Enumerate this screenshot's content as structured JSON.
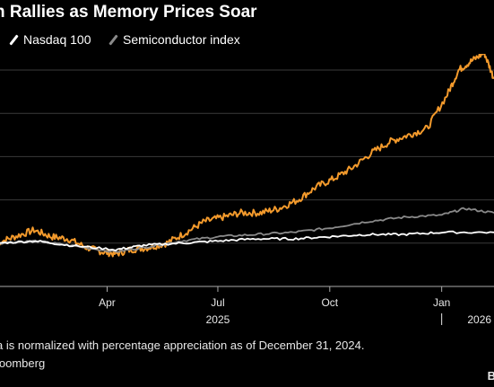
{
  "header": {
    "title": "n Rallies as Memory Prices Soar"
  },
  "legend": [
    {
      "label": "Nasdaq 100",
      "color": "#ffffff"
    },
    {
      "label": "Semiconductor index",
      "color": "#8a8a8a"
    }
  ],
  "chart_data": {
    "type": "line",
    "x_range": [
      "2024-12-31",
      "2026-02-13"
    ],
    "y_range": [
      -20,
      80
    ],
    "grid": true,
    "series": [
      {
        "name": "",
        "color": "#f39a2c",
        "points": [
          [
            "2024-12-31",
            0
          ],
          [
            "2025-01-15",
            3
          ],
          [
            "2025-01-31",
            6
          ],
          [
            "2025-02-14",
            3
          ],
          [
            "2025-02-28",
            2
          ],
          [
            "2025-03-15",
            -2
          ],
          [
            "2025-03-28",
            -4
          ],
          [
            "2025-04-08",
            -5
          ],
          [
            "2025-04-20",
            -3
          ],
          [
            "2025-05-05",
            -2
          ],
          [
            "2025-05-20",
            0
          ],
          [
            "2025-06-05",
            5
          ],
          [
            "2025-06-20",
            10
          ],
          [
            "2025-07-05",
            12
          ],
          [
            "2025-07-20",
            14
          ],
          [
            "2025-08-05",
            14
          ],
          [
            "2025-08-20",
            16
          ],
          [
            "2025-09-05",
            20
          ],
          [
            "2025-09-20",
            26
          ],
          [
            "2025-10-05",
            30
          ],
          [
            "2025-10-20",
            35
          ],
          [
            "2025-11-05",
            42
          ],
          [
            "2025-11-20",
            47
          ],
          [
            "2025-12-05",
            50
          ],
          [
            "2025-12-20",
            53
          ],
          [
            "2026-01-05",
            68
          ],
          [
            "2026-01-15",
            80
          ],
          [
            "2026-01-25",
            84
          ],
          [
            "2026-02-05",
            88
          ],
          [
            "2026-02-13",
            76
          ]
        ]
      },
      {
        "name": "Semiconductor index",
        "color": "#8a8a8a",
        "points": [
          [
            "2024-12-31",
            0
          ],
          [
            "2025-02-01",
            1
          ],
          [
            "2025-03-01",
            -1
          ],
          [
            "2025-04-08",
            -4
          ],
          [
            "2025-05-01",
            -2
          ],
          [
            "2025-06-01",
            1
          ],
          [
            "2025-07-01",
            3
          ],
          [
            "2025-08-01",
            4
          ],
          [
            "2025-09-01",
            5
          ],
          [
            "2025-10-01",
            7
          ],
          [
            "2025-11-01",
            10
          ],
          [
            "2025-12-01",
            12
          ],
          [
            "2026-01-01",
            13
          ],
          [
            "2026-01-20",
            16
          ],
          [
            "2026-02-13",
            14
          ]
        ]
      },
      {
        "name": "Nasdaq 100",
        "color": "#ffffff",
        "points": [
          [
            "2024-12-31",
            0
          ],
          [
            "2025-02-01",
            1
          ],
          [
            "2025-03-01",
            -1
          ],
          [
            "2025-04-08",
            -3
          ],
          [
            "2025-05-01",
            -1
          ],
          [
            "2025-06-01",
            0
          ],
          [
            "2025-07-01",
            1
          ],
          [
            "2025-08-01",
            2
          ],
          [
            "2025-09-01",
            2
          ],
          [
            "2025-10-01",
            3
          ],
          [
            "2025-11-01",
            4
          ],
          [
            "2025-12-01",
            4
          ],
          [
            "2026-01-01",
            5
          ],
          [
            "2026-02-13",
            5
          ]
        ]
      }
    ],
    "x_ticks": [
      {
        "date": "2025-04-01",
        "label": "Apr"
      },
      {
        "date": "2025-07-01",
        "label": "Jul"
      },
      {
        "date": "2025-10-01",
        "label": "Oct"
      },
      {
        "date": "2026-01-01",
        "label": "Jan"
      }
    ],
    "year_labels": [
      {
        "date": "2025-07-01",
        "label": "2025"
      },
      {
        "date": "2026-02-01",
        "label": "2026"
      }
    ],
    "year_divider": "2026-01-01"
  },
  "footnote": {
    "note": "a is normalized with percentage appreciation as of December 31, 2024.",
    "source": "loomberg"
  },
  "brand": "B"
}
